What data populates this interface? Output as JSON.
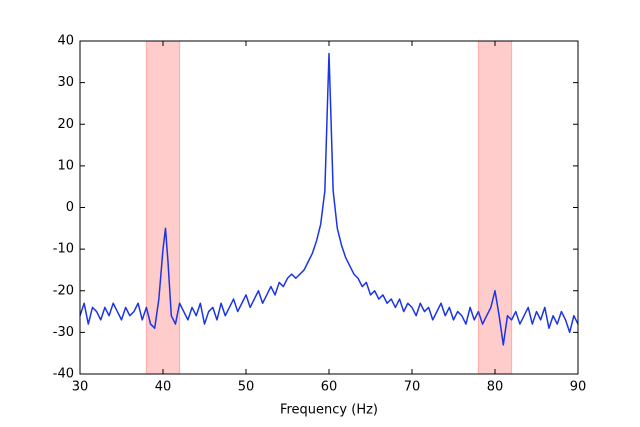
{
  "chart_data": {
    "type": "line",
    "xlabel": "Frequency (Hz)",
    "x": [
      30,
      30.5,
      31,
      31.5,
      32,
      32.5,
      33,
      33.5,
      34,
      34.5,
      35,
      35.5,
      36,
      36.5,
      37,
      37.5,
      38,
      38.5,
      39,
      39.5,
      40,
      40.3,
      40.6,
      41,
      41.5,
      42,
      42.5,
      43,
      43.5,
      44,
      44.5,
      45,
      45.5,
      46,
      46.5,
      47,
      47.5,
      48,
      48.5,
      49,
      49.5,
      50,
      50.5,
      51,
      51.5,
      52,
      52.5,
      53,
      53.5,
      54,
      54.5,
      55,
      55.5,
      56,
      56.5,
      57,
      57.5,
      58,
      58.5,
      59,
      59.5,
      59.8,
      60,
      60.2,
      60.5,
      61,
      61.5,
      62,
      62.5,
      63,
      63.5,
      64,
      64.5,
      65,
      65.5,
      66,
      66.5,
      67,
      67.5,
      68,
      68.5,
      69,
      69.5,
      70,
      70.5,
      71,
      71.5,
      72,
      72.5,
      73,
      73.5,
      74,
      74.5,
      75,
      75.5,
      76,
      76.5,
      77,
      77.5,
      78,
      78.5,
      79,
      79.5,
      80,
      80.5,
      81,
      81.5,
      82,
      82.5,
      83,
      83.5,
      84,
      84.5,
      85,
      85.5,
      86,
      86.5,
      87,
      87.5,
      88,
      88.5,
      89,
      89.5,
      90
    ],
    "values": [
      -26,
      -23,
      -28,
      -24,
      -25,
      -27,
      -24,
      -26,
      -23,
      -25,
      -27,
      -24,
      -26,
      -25,
      -23,
      -27,
      -24,
      -28,
      -29,
      -22,
      -10,
      -5,
      -13,
      -26,
      -28,
      -23,
      -25,
      -27,
      -24,
      -26,
      -23,
      -28,
      -25,
      -24,
      -27,
      -23,
      -26,
      -24,
      -22,
      -25,
      -23,
      -21,
      -24,
      -22,
      -20,
      -23,
      -21,
      -19,
      -21,
      -18,
      -19,
      -17,
      -16,
      -17,
      -16,
      -15,
      -13,
      -11,
      -8,
      -4,
      4,
      24,
      37,
      24,
      4,
      -5,
      -9,
      -12,
      -14,
      -16,
      -17,
      -19,
      -18,
      -21,
      -20,
      -22,
      -21,
      -23,
      -22,
      -24,
      -22,
      -25,
      -23,
      -24,
      -26,
      -23,
      -25,
      -24,
      -27,
      -25,
      -23,
      -26,
      -24,
      -27,
      -25,
      -26,
      -28,
      -24,
      -27,
      -25,
      -28,
      -26,
      -24,
      -20,
      -26,
      -33,
      -26,
      -27,
      -25,
      -28,
      -26,
      -24,
      -28,
      -25,
      -27,
      -24,
      -29,
      -26,
      -28,
      -25,
      -27,
      -30,
      -26,
      -28
    ],
    "color": "#1a35e6",
    "bands": [
      [
        38,
        42
      ],
      [
        78,
        82
      ]
    ],
    "band_color": "#ffcccc",
    "xlim": [
      30,
      90
    ],
    "xticks": [
      30,
      40,
      50,
      60,
      70,
      80,
      90
    ],
    "ylim": [
      -40,
      40
    ],
    "yticks": [
      -40,
      -30,
      -20,
      -10,
      0,
      10,
      20,
      30,
      40
    ]
  }
}
